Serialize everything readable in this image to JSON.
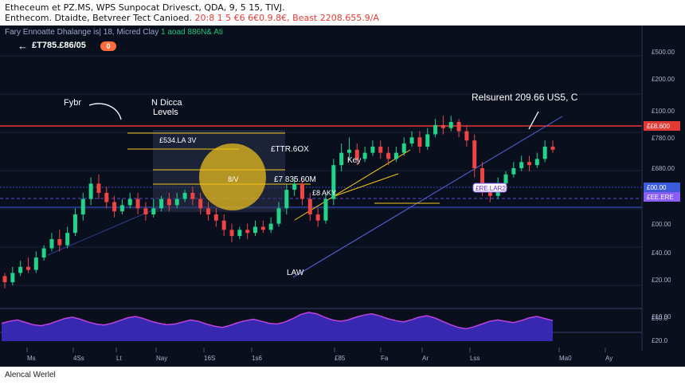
{
  "header": {
    "line1": "Etheceum et PZ.MS, WPS Sunpocat Drivesct, QDA, 9, 5 15, TIVJ.",
    "line2_black": "Enthecom. Dtaidte, Betvreer Tect Canioed.",
    "line2_red": "20:8 1 5 €6 6€0.9.8€, Beast 2208.655.9/A"
  },
  "toolbar": {
    "text": "Fary Ennoatte Dhalange is| 18, Micred Clay",
    "green_text": "1 aoad 886N& Ati"
  },
  "ticker": {
    "label": "£T785.£86/05",
    "badge": "0",
    "back_icon": "back-arrow-icon"
  },
  "footer": {
    "text": "Alencal Werlel"
  },
  "colors": {
    "background": "#0a0f1e",
    "bull": "#22d38a",
    "bear": "#ef4444",
    "resistance": "#e53935",
    "support": "#3b5bdb",
    "highlight": "#f5c518",
    "oscillator_fill": "#3b2bbf",
    "oscillator_accent": "#c040e0"
  },
  "annotations": {
    "fybr": "Fybr",
    "fib_title_1": "N Dicca",
    "fib_title_2": "Levels",
    "resistance_label": "Relsurent 209.66 US5, C",
    "fib_level_1": "£534.LA 3V",
    "fib_level_2": "£TTR.6OX",
    "fib_level_3": "8/V",
    "fib_level_4": "£7 835.60M",
    "key": "Key",
    "support_label": "£8 AKY",
    "law": "LAW",
    "purple_tag": "£RE.LAR2"
  },
  "chart_data": {
    "type": "candlestick",
    "price_axis_ticks": [
      "£500.00",
      "£200.00",
      "£100.00",
      "£780.00",
      "£680.00",
      "£50.00",
      "£00.00",
      "£40.00",
      "£20.00",
      "£10.00"
    ],
    "price_tags": [
      {
        "text": "££8.600",
        "color": "#e53935"
      },
      {
        "text": "£00.00",
        "color": "#3b5bdb"
      },
      {
        "text": "£EE.ERE",
        "color": "#8b5cf6"
      }
    ],
    "oscillator_ticks": [
      "£50.0",
      "£20.0"
    ],
    "x_ticks": [
      "Ms",
      "4Ss",
      "Lt",
      "Nay",
      "16S",
      "1s6",
      "£85",
      "Fa",
      "Ar",
      "Lss",
      "Ma0",
      "Ay"
    ],
    "price_range": [
      0,
      100
    ],
    "candles": [
      [
        30,
        28,
        31,
        26
      ],
      [
        28,
        31,
        33,
        27
      ],
      [
        31,
        33,
        35,
        30
      ],
      [
        33,
        32,
        36,
        31
      ],
      [
        32,
        36,
        38,
        31
      ],
      [
        36,
        39,
        40,
        35
      ],
      [
        39,
        42,
        44,
        38
      ],
      [
        42,
        40,
        45,
        38
      ],
      [
        40,
        44,
        46,
        39
      ],
      [
        44,
        50,
        52,
        43
      ],
      [
        50,
        55,
        57,
        48
      ],
      [
        55,
        60,
        62,
        53
      ],
      [
        60,
        57,
        63,
        55
      ],
      [
        57,
        54,
        59,
        52
      ],
      [
        54,
        51,
        56,
        49
      ],
      [
        51,
        53,
        55,
        50
      ],
      [
        53,
        55,
        57,
        52
      ],
      [
        55,
        52,
        57,
        50
      ],
      [
        52,
        50,
        54,
        48
      ],
      [
        50,
        52,
        55,
        49
      ],
      [
        52,
        55,
        56,
        51
      ],
      [
        55,
        53,
        57,
        51
      ],
      [
        53,
        55,
        57,
        52
      ],
      [
        55,
        57,
        58,
        54
      ],
      [
        57,
        55,
        59,
        53
      ],
      [
        55,
        52,
        57,
        50
      ],
      [
        52,
        50,
        54,
        48
      ],
      [
        50,
        48,
        52,
        46
      ],
      [
        48,
        45,
        50,
        43
      ],
      [
        45,
        43,
        47,
        41
      ],
      [
        43,
        45,
        46,
        42
      ],
      [
        45,
        44,
        47,
        42
      ],
      [
        44,
        46,
        48,
        43
      ],
      [
        46,
        45,
        48,
        44
      ],
      [
        45,
        47,
        49,
        44
      ],
      [
        47,
        52,
        54,
        46
      ],
      [
        52,
        58,
        60,
        50
      ],
      [
        58,
        60,
        62,
        56
      ],
      [
        60,
        55,
        61,
        53
      ],
      [
        55,
        50,
        57,
        48
      ],
      [
        50,
        48,
        52,
        46
      ],
      [
        48,
        55,
        57,
        47
      ],
      [
        55,
        66,
        68,
        53
      ],
      [
        66,
        70,
        73,
        64
      ],
      [
        70,
        71,
        75,
        68
      ],
      [
        71,
        68,
        73,
        66
      ],
      [
        68,
        70,
        72,
        67
      ],
      [
        70,
        72,
        74,
        69
      ],
      [
        72,
        70,
        74,
        68
      ],
      [
        70,
        68,
        72,
        66
      ],
      [
        68,
        70,
        72,
        67
      ],
      [
        70,
        73,
        75,
        69
      ],
      [
        73,
        75,
        77,
        72
      ],
      [
        75,
        72,
        77,
        70
      ],
      [
        72,
        76,
        78,
        71
      ],
      [
        76,
        79,
        81,
        75
      ],
      [
        79,
        78,
        82,
        76
      ],
      [
        78,
        80,
        82,
        77
      ],
      [
        80,
        77,
        81,
        75
      ],
      [
        77,
        74,
        79,
        72
      ],
      [
        74,
        65,
        76,
        62
      ],
      [
        65,
        58,
        67,
        56
      ],
      [
        58,
        56,
        60,
        54
      ],
      [
        56,
        60,
        62,
        55
      ],
      [
        60,
        63,
        64,
        59
      ],
      [
        63,
        65,
        67,
        62
      ],
      [
        65,
        67,
        69,
        64
      ],
      [
        67,
        66,
        69,
        64
      ],
      [
        66,
        68,
        70,
        65
      ],
      [
        68,
        72,
        74,
        67
      ],
      [
        72,
        71,
        74,
        70
      ]
    ],
    "oscillator": [
      52,
      58,
      62,
      55,
      48,
      45,
      50,
      58,
      66,
      70,
      64,
      56,
      50,
      47,
      52,
      60,
      68,
      72,
      66,
      58,
      52,
      48,
      50,
      56,
      62,
      58,
      50,
      44,
      40,
      46,
      54,
      60,
      64,
      58,
      52,
      50,
      56,
      66,
      78,
      84,
      80,
      70,
      62,
      58,
      62,
      70,
      76,
      80,
      74,
      66,
      60,
      56,
      62,
      70,
      74,
      68,
      58,
      48,
      40,
      36,
      42,
      50,
      58,
      62,
      58,
      54,
      60,
      68,
      72,
      66,
      60
    ]
  }
}
